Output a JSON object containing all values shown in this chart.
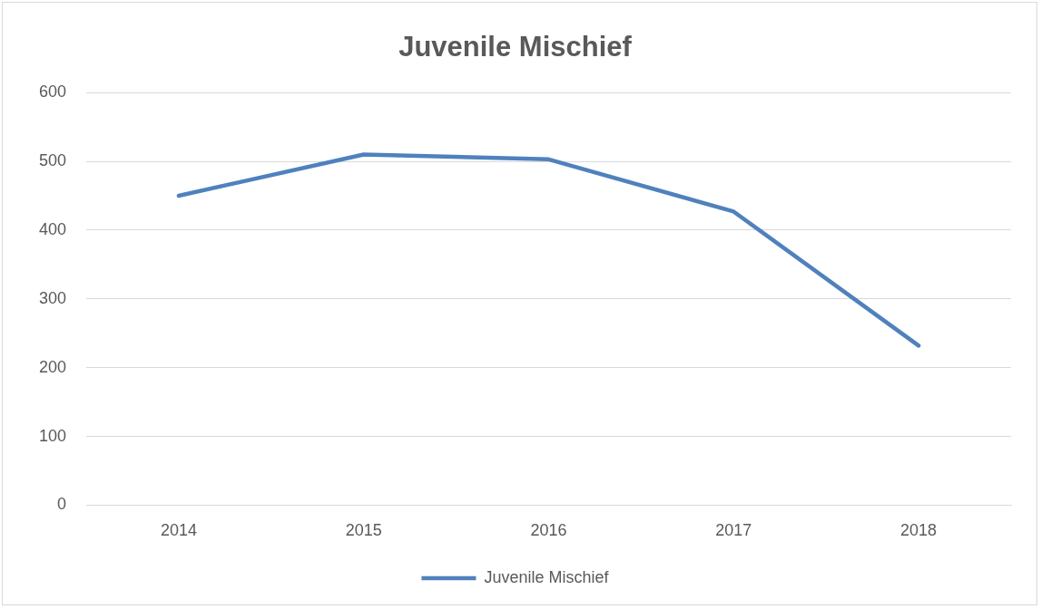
{
  "chart_data": {
    "type": "line",
    "title": "Juvenile Mischief",
    "categories": [
      "2014",
      "2015",
      "2016",
      "2017",
      "2018"
    ],
    "series": [
      {
        "name": "Juvenile Mischief",
        "color": "#4f81bd",
        "values": [
          450,
          510,
          503,
          427,
          232
        ]
      }
    ],
    "ylim": [
      0,
      600
    ],
    "yticks": [
      0,
      100,
      200,
      300,
      400,
      500,
      600
    ],
    "grid": "y",
    "legend": "bottom",
    "marker": "none",
    "line_style": "solid"
  }
}
